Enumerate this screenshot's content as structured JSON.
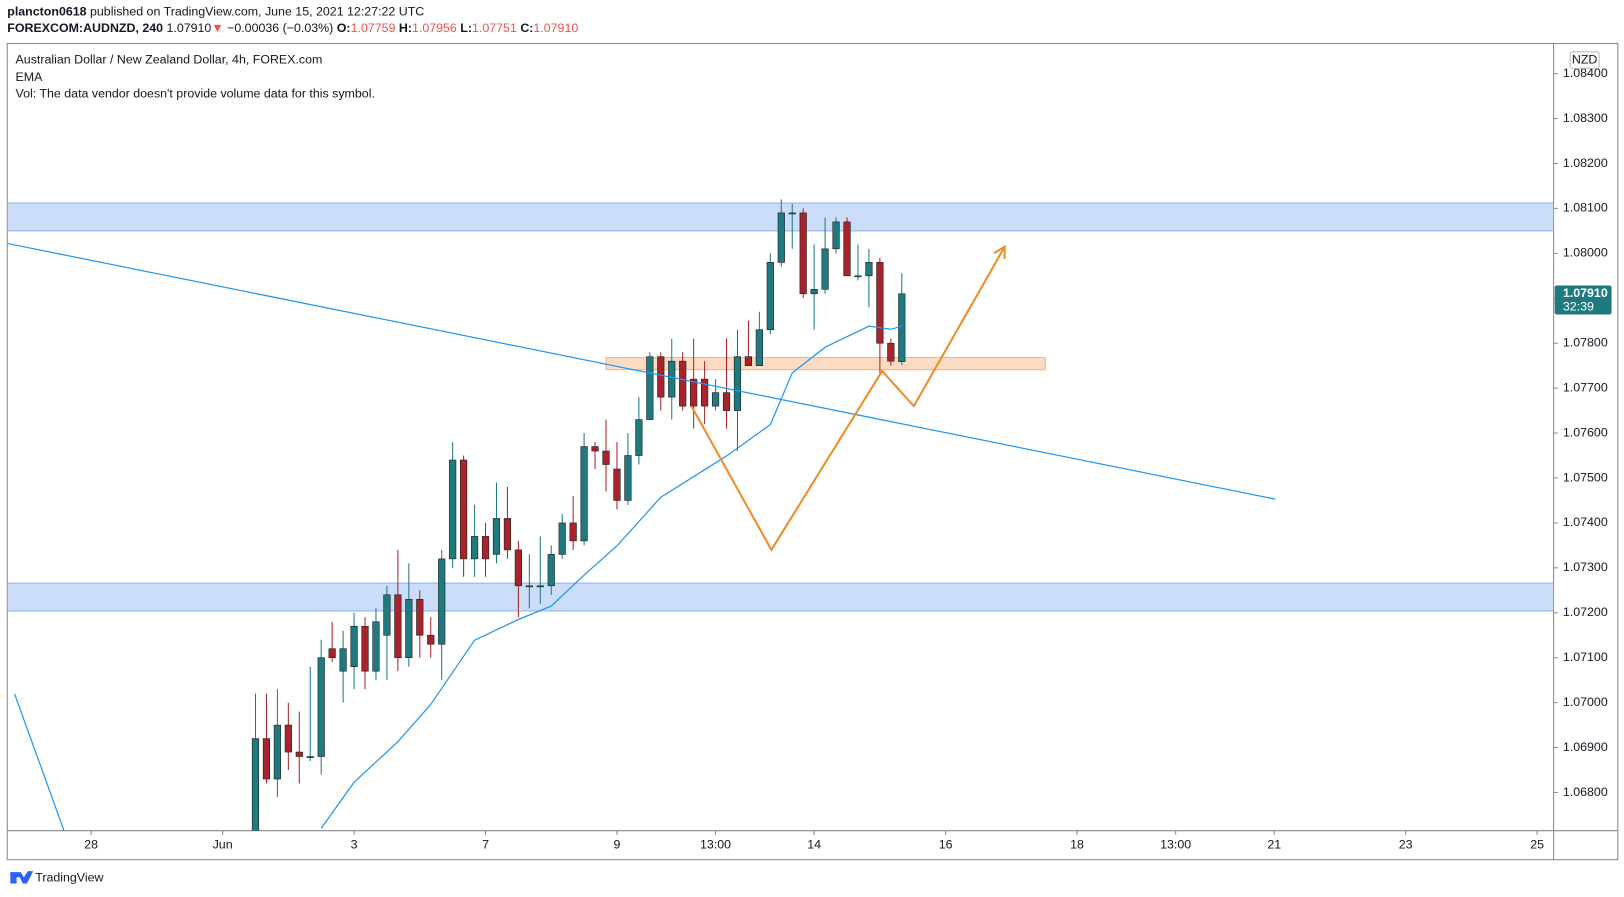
{
  "chart_data": {
    "type": "candlestick",
    "header": {
      "publisher": "plancton0618",
      "published": "published on TradingView.com, June 15, 2021 12:27:22 UTC",
      "symbol": "FOREXCOM:AUDNZD, 240",
      "last": "1.07910",
      "arrow": "▼",
      "change": "−0.00036 (−0.03%)",
      "o_label": "O:",
      "o": "1.07759",
      "h_label": "H:",
      "h": "1.07956",
      "l_label": "L:",
      "l": "1.07751",
      "c_label": "C:",
      "c": "1.07910"
    },
    "title": "Australian Dollar / New Zealand Dollar, 4h, FOREX.com",
    "indicator": "EMA",
    "volume_note": "Vol: The data vendor doesn't provide volume data for this symbol.",
    "currency": "NZD",
    "price_label": {
      "value": 1.0791,
      "label": "1.07910"
    },
    "countdown": "32:39",
    "footer": "TradingView",
    "up_color": "#1f7a80",
    "down_color": "#a8232b",
    "xlim": [
      -7.66,
      133.5
    ],
    "ylim": [
      1.06715,
      1.08467
    ],
    "xticks": [
      {
        "value": 0,
        "label": "28"
      },
      {
        "value": 12,
        "label": "Jun"
      },
      {
        "value": 24,
        "label": "3"
      },
      {
        "value": 36,
        "label": "7"
      },
      {
        "value": 48,
        "label": "9"
      },
      {
        "value": 57,
        "label": "13:00"
      },
      {
        "value": 66,
        "label": "14"
      },
      {
        "value": 78,
        "label": "16"
      },
      {
        "value": 90,
        "label": "18"
      },
      {
        "value": 99,
        "label": "13:00"
      },
      {
        "value": 108,
        "label": "21"
      },
      {
        "value": 120,
        "label": "23"
      },
      {
        "value": 132,
        "label": "25"
      }
    ],
    "yticks": [
      {
        "value": 1.068,
        "label": "1.06800"
      },
      {
        "value": 1.069,
        "label": "1.06900"
      },
      {
        "value": 1.07,
        "label": "1.07000"
      },
      {
        "value": 1.071,
        "label": "1.07100"
      },
      {
        "value": 1.072,
        "label": "1.07200"
      },
      {
        "value": 1.073,
        "label": "1.07300"
      },
      {
        "value": 1.074,
        "label": "1.07400"
      },
      {
        "value": 1.075,
        "label": "1.07500"
      },
      {
        "value": 1.076,
        "label": "1.07600"
      },
      {
        "value": 1.077,
        "label": "1.07700"
      },
      {
        "value": 1.078,
        "label": "1.07800"
      },
      {
        "value": 1.079,
        "label": "1.07900"
      },
      {
        "value": 1.08,
        "label": "1.08000"
      },
      {
        "value": 1.081,
        "label": "1.08100"
      },
      {
        "value": 1.082,
        "label": "1.08200"
      },
      {
        "value": 1.083,
        "label": "1.08300"
      },
      {
        "value": 1.084,
        "label": "1.08400"
      }
    ],
    "candles": {
      "x": [
        15,
        16,
        17,
        18,
        19,
        20,
        21,
        22,
        23,
        24,
        25,
        26,
        27,
        28,
        29,
        30,
        31,
        32,
        33,
        34,
        35,
        36,
        37,
        38,
        39,
        40,
        41,
        42,
        43,
        44,
        45,
        46,
        47,
        48,
        49,
        50,
        51,
        52,
        53,
        54,
        55,
        56,
        57,
        58,
        59,
        60,
        61,
        62,
        63,
        64,
        65,
        66,
        67,
        68,
        69,
        70,
        71,
        72,
        73,
        74
      ],
      "open": [
        1.0671,
        1.0692,
        1.0683,
        1.0695,
        1.0689,
        1.0688,
        1.0688,
        1.0712,
        1.0707,
        1.0708,
        1.0717,
        1.0707,
        1.0715,
        1.0724,
        1.071,
        1.0723,
        1.0715,
        1.0713,
        1.0732,
        1.0754,
        1.0732,
        1.0737,
        1.0733,
        1.0741,
        1.0734,
        1.0726,
        1.0726,
        1.0726,
        1.0733,
        1.074,
        1.0736,
        1.0757,
        1.0756,
        1.0752,
        1.0745,
        1.0755,
        1.0763,
        1.0777,
        1.0768,
        1.0776,
        1.0772,
        1.0772,
        1.0766,
        1.0769,
        1.0765,
        1.0777,
        1.0775,
        1.0783,
        1.0798,
        1.0809,
        1.0809,
        1.0791,
        1.0792,
        1.0801,
        1.0807,
        1.0795,
        1.0795,
        1.0798,
        1.078,
        1.07759
      ],
      "high": [
        1.0702,
        1.0702,
        1.0703,
        1.07,
        1.0698,
        1.0708,
        1.0714,
        1.0718,
        1.0716,
        1.072,
        1.0719,
        1.0721,
        1.0726,
        1.0734,
        1.0731,
        1.0725,
        1.0719,
        1.0734,
        1.0758,
        1.0755,
        1.0744,
        1.074,
        1.0749,
        1.0748,
        1.0736,
        1.0733,
        1.0737,
        1.0735,
        1.0742,
        1.0746,
        1.076,
        1.0758,
        1.0763,
        1.0758,
        1.076,
        1.0768,
        1.0778,
        1.0778,
        1.0781,
        1.0778,
        1.0781,
        1.0776,
        1.0772,
        1.0781,
        1.0783,
        1.0785,
        1.0787,
        1.08,
        1.0812,
        1.0811,
        1.081,
        1.0802,
        1.0808,
        1.0808,
        1.0808,
        1.0802,
        1.0801,
        1.0799,
        1.0781,
        1.07956
      ],
      "low": [
        1.0668,
        1.0682,
        1.0679,
        1.0685,
        1.0682,
        1.0687,
        1.0684,
        1.0709,
        1.07,
        1.0703,
        1.0703,
        1.0705,
        1.0705,
        1.0707,
        1.0708,
        1.071,
        1.071,
        1.0705,
        1.073,
        1.0728,
        1.0728,
        1.0728,
        1.0731,
        1.0732,
        1.0719,
        1.0721,
        1.0722,
        1.0724,
        1.0732,
        1.0734,
        1.0735,
        1.0752,
        1.0747,
        1.0743,
        1.0744,
        1.0753,
        1.0763,
        1.0765,
        1.0763,
        1.0765,
        1.0761,
        1.0762,
        1.0765,
        1.0761,
        1.0756,
        1.0775,
        1.0775,
        1.0782,
        1.0797,
        1.0801,
        1.079,
        1.0783,
        1.0791,
        1.08,
        1.0795,
        1.0794,
        1.0788,
        1.0773,
        1.0775,
        1.07751
      ],
      "close": [
        1.0692,
        1.0683,
        1.0695,
        1.0689,
        1.0688,
        1.0688,
        1.071,
        1.071,
        1.0712,
        1.0717,
        1.0707,
        1.0718,
        1.0724,
        1.071,
        1.0723,
        1.0715,
        1.0713,
        1.0732,
        1.0754,
        1.0732,
        1.0737,
        1.0732,
        1.0741,
        1.0734,
        1.0726,
        1.0726,
        1.0726,
        1.0733,
        1.074,
        1.0736,
        1.0757,
        1.0756,
        1.0753,
        1.0745,
        1.0755,
        1.0763,
        1.0777,
        1.0768,
        1.0776,
        1.0766,
        1.0766,
        1.0766,
        1.0769,
        1.0765,
        1.0777,
        1.0775,
        1.0783,
        1.0798,
        1.0809,
        1.0809,
        1.0791,
        1.0792,
        1.0801,
        1.0807,
        1.0795,
        1.0795,
        1.0798,
        1.078,
        1.0776,
        1.0791
      ]
    },
    "ema": {
      "color": "#2196f3",
      "x": [
        -7,
        -2.4,
        null,
        21,
        24,
        28,
        31,
        35,
        39,
        42,
        45,
        48,
        52,
        55,
        58,
        62,
        64,
        67,
        71,
        73,
        74
      ],
      "values": [
        1.0702,
        1.0671,
        null,
        1.0672,
        1.06823,
        1.06913,
        1.06996,
        1.07139,
        1.07185,
        1.07215,
        1.07284,
        1.07349,
        1.07457,
        1.07503,
        1.07549,
        1.07619,
        1.07734,
        1.07791,
        1.07838,
        1.07831,
        1.07838
      ]
    },
    "zones": [
      {
        "color": "#8cb4f0",
        "x": [
          -7.66,
          133.5
        ],
        "y": [
          1.0805,
          1.08112
        ]
      },
      {
        "color": "#8cb4f0",
        "x": [
          -7.66,
          133.5
        ],
        "y": [
          1.07204,
          1.07266
        ]
      },
      {
        "color": "#f7b27a",
        "x": [
          47,
          87.1
        ],
        "y": [
          1.07741,
          1.07768
        ]
      }
    ],
    "lines": [
      {
        "color": "#2196f3",
        "x": [
          -7.66,
          108.1
        ],
        "y": [
          1.08022,
          1.07453
        ]
      },
      {
        "color": "#f08c28",
        "arrow": true,
        "x": [
          54.8,
          62.1,
          72.2,
          75.1,
          83.4
        ],
        "y": [
          1.0766,
          1.0734,
          1.07738,
          1.0766,
          1.08015
        ]
      }
    ]
  }
}
